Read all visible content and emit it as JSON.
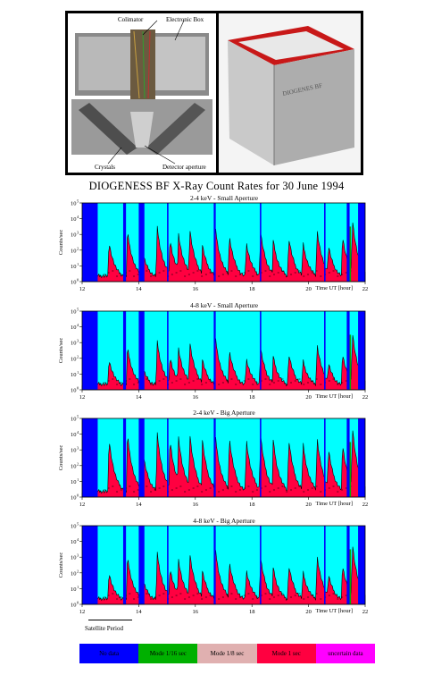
{
  "photos": {
    "labels": {
      "colimator": "Colimator",
      "electronic_box": "Electronic Box",
      "crystals": "Crystals",
      "detector_aperture": "Detector aperture"
    },
    "device_text": "DIOGENES BF"
  },
  "figure_title": "DIOGENESS BF X-Ray Count Rates for 30 June 1994",
  "satellite_period_label": "Satellite Period",
  "legend": [
    {
      "label": "No data",
      "color": "#0000ff"
    },
    {
      "label": "Mode 1/16 sec",
      "color": "#00b000"
    },
    {
      "label": "Mode 1/8 sec",
      "color": "#e0b0b0"
    },
    {
      "label": "Mode 1 sec",
      "color": "#ff0040"
    },
    {
      "label": "uncertain data",
      "color": "#ff00ff"
    }
  ],
  "colors": {
    "background_signal": "#00ffff",
    "no_data": "#0000ff",
    "counts": "#ff0040",
    "mode_1_16": "#00b000",
    "uncertain": "#ff00ff"
  },
  "chart_data": [
    {
      "type": "area",
      "title": "2-4 keV - Small Aperture",
      "xlabel": "Time UT [hour]",
      "ylabel": "Counts/sec",
      "xlim": [
        12,
        22
      ],
      "ylim_log10": [
        0,
        5
      ],
      "xticks": [
        "12",
        "14",
        "16",
        "18",
        "20",
        "22"
      ],
      "yticks": [
        "10",
        "10",
        "10",
        "10",
        "10",
        "10"
      ],
      "yticks_exp": [
        "0",
        "1",
        "2",
        "3",
        "4",
        "5"
      ],
      "no_data_hours": [
        [
          12.0,
          12.55
        ],
        [
          13.45,
          13.55
        ],
        [
          14.0,
          14.2
        ],
        [
          15.0,
          15.05
        ],
        [
          16.65,
          16.72
        ],
        [
          18.28,
          18.33
        ],
        [
          20.55,
          20.6
        ],
        [
          21.35,
          21.45
        ],
        [
          21.75,
          22.0
        ]
      ],
      "peaks": [
        [
          12.95,
          2.4
        ],
        [
          13.6,
          3.1
        ],
        [
          14.1,
          2.1
        ],
        [
          14.65,
          3.4
        ],
        [
          15.1,
          2.6
        ],
        [
          15.4,
          3.0
        ],
        [
          15.8,
          3.3
        ],
        [
          16.25,
          2.2
        ],
        [
          16.7,
          3.4
        ],
        [
          17.2,
          2.8
        ],
        [
          17.8,
          2.4
        ],
        [
          18.3,
          3.1
        ],
        [
          18.75,
          2.5
        ],
        [
          19.3,
          2.7
        ],
        [
          19.8,
          2.4
        ],
        [
          20.3,
          3.2
        ],
        [
          20.7,
          2.2
        ],
        [
          21.2,
          2.8
        ],
        [
          21.55,
          3.9
        ]
      ]
    },
    {
      "type": "area",
      "title": "4-8 keV - Small Aperture",
      "xlabel": "Time UT [hour]",
      "ylabel": "Counts/sec",
      "xlim": [
        12,
        22
      ],
      "ylim_log10": [
        0,
        5
      ],
      "xticks": [
        "12",
        "14",
        "16",
        "18",
        "20",
        "22"
      ],
      "yticks": [
        "10",
        "10",
        "10",
        "10",
        "10",
        "10"
      ],
      "yticks_exp": [
        "0",
        "1",
        "2",
        "3",
        "4",
        "5"
      ],
      "no_data_hours": [
        [
          12.0,
          12.55
        ],
        [
          13.45,
          13.55
        ],
        [
          14.0,
          14.2
        ],
        [
          15.0,
          15.05
        ],
        [
          16.65,
          16.72
        ],
        [
          18.28,
          18.33
        ],
        [
          20.55,
          20.6
        ],
        [
          21.35,
          21.45
        ],
        [
          21.75,
          22.0
        ]
      ],
      "peaks": [
        [
          12.95,
          1.8
        ],
        [
          13.6,
          2.6
        ],
        [
          14.1,
          1.6
        ],
        [
          14.65,
          3.0
        ],
        [
          15.1,
          2.0
        ],
        [
          15.4,
          2.6
        ],
        [
          15.8,
          3.0
        ],
        [
          16.25,
          1.8
        ],
        [
          16.7,
          3.3
        ],
        [
          17.2,
          2.4
        ],
        [
          17.8,
          1.9
        ],
        [
          18.3,
          2.6
        ],
        [
          18.75,
          2.0
        ],
        [
          19.3,
          2.2
        ],
        [
          19.8,
          1.8
        ],
        [
          20.3,
          2.8
        ],
        [
          20.7,
          1.6
        ],
        [
          21.2,
          2.2
        ],
        [
          21.55,
          3.6
        ]
      ]
    },
    {
      "type": "area",
      "title": "2-4 keV - Big Aperture",
      "xlabel": "Time UT [hour]",
      "ylabel": "Counts/sec",
      "xlim": [
        12,
        22
      ],
      "ylim_log10": [
        0,
        5
      ],
      "xticks": [
        "12",
        "14",
        "16",
        "18",
        "20",
        "22"
      ],
      "yticks": [
        "10",
        "10",
        "10",
        "10",
        "10",
        "10"
      ],
      "yticks_exp": [
        "0",
        "1",
        "2",
        "3",
        "4",
        "5"
      ],
      "no_data_hours": [
        [
          12.0,
          12.55
        ],
        [
          13.45,
          13.55
        ],
        [
          14.0,
          14.2
        ],
        [
          15.0,
          15.05
        ],
        [
          16.65,
          16.72
        ],
        [
          18.28,
          18.33
        ],
        [
          20.55,
          20.6
        ],
        [
          21.35,
          21.45
        ],
        [
          21.75,
          22.0
        ]
      ],
      "peaks": [
        [
          12.95,
          3.6
        ],
        [
          13.6,
          3.9
        ],
        [
          14.1,
          3.4
        ],
        [
          14.65,
          4.0
        ],
        [
          15.1,
          3.6
        ],
        [
          15.4,
          3.8
        ],
        [
          15.8,
          4.0
        ],
        [
          16.25,
          3.5
        ],
        [
          16.7,
          3.9
        ],
        [
          17.2,
          3.7
        ],
        [
          17.8,
          3.6
        ],
        [
          18.3,
          3.9
        ],
        [
          18.75,
          3.5
        ],
        [
          19.3,
          3.6
        ],
        [
          19.8,
          3.4
        ],
        [
          20.3,
          3.7
        ],
        [
          20.7,
          3.0
        ],
        [
          21.2,
          3.3
        ],
        [
          21.55,
          4.4
        ]
      ]
    },
    {
      "type": "area",
      "title": "4-8 keV - Big Aperture",
      "xlabel": "Time UT [hour]",
      "ylabel": "Counts/sec",
      "xlim": [
        12,
        22
      ],
      "ylim_log10": [
        0,
        5
      ],
      "xticks": [
        "12",
        "14",
        "16",
        "18",
        "20",
        "22"
      ],
      "yticks": [
        "10",
        "10",
        "10",
        "10",
        "10",
        "10"
      ],
      "yticks_exp": [
        "0",
        "1",
        "2",
        "3",
        "4",
        "5"
      ],
      "no_data_hours": [
        [
          12.0,
          12.55
        ],
        [
          13.45,
          13.55
        ],
        [
          14.0,
          14.2
        ],
        [
          15.0,
          15.05
        ],
        [
          16.65,
          16.72
        ],
        [
          18.28,
          18.33
        ],
        [
          20.55,
          20.6
        ],
        [
          21.35,
          21.45
        ],
        [
          21.75,
          22.0
        ]
      ],
      "peaks": [
        [
          12.95,
          1.9
        ],
        [
          13.6,
          2.9
        ],
        [
          14.1,
          1.8
        ],
        [
          14.65,
          3.2
        ],
        [
          15.1,
          2.2
        ],
        [
          15.4,
          2.8
        ],
        [
          15.8,
          3.2
        ],
        [
          16.25,
          2.0
        ],
        [
          16.7,
          3.5
        ],
        [
          17.2,
          2.6
        ],
        [
          17.8,
          2.1
        ],
        [
          18.3,
          2.9
        ],
        [
          18.75,
          2.2
        ],
        [
          19.3,
          2.4
        ],
        [
          19.8,
          2.0
        ],
        [
          20.3,
          3.0
        ],
        [
          20.7,
          1.8
        ],
        [
          21.2,
          2.4
        ],
        [
          21.55,
          3.8
        ]
      ]
    }
  ]
}
